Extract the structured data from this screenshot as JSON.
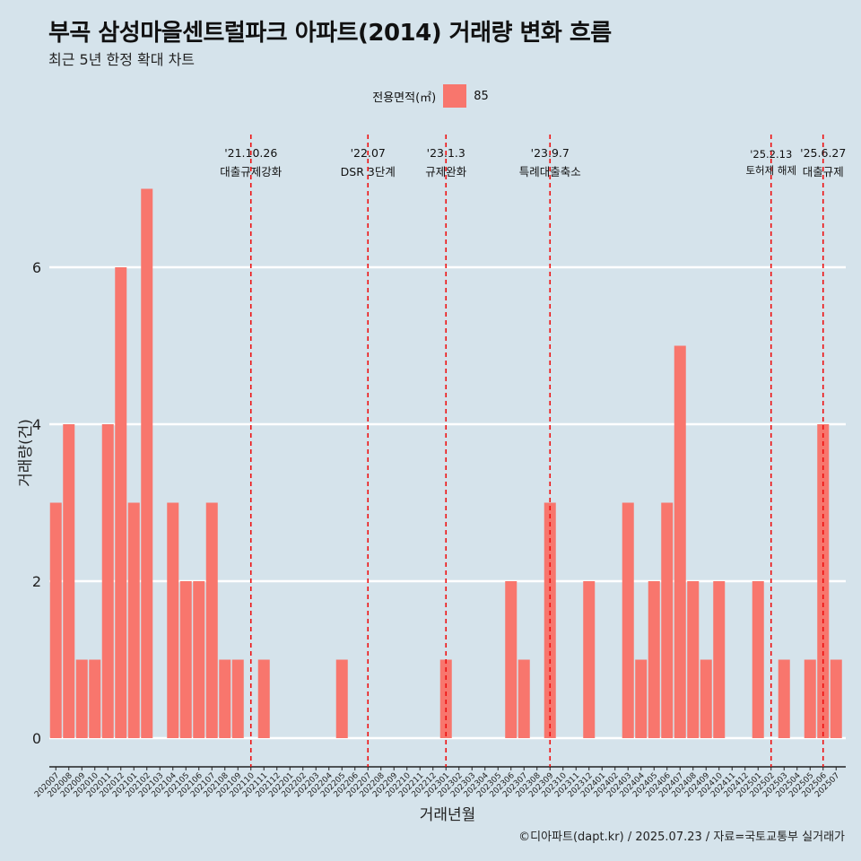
{
  "title": "부곡 삼성마을센트럴파크 아파트(2014) 거래량 변화 흐름",
  "subtitle": "최근 5년 한정 확대 차트",
  "legend": {
    "title": "전용면적(㎡)",
    "label": "85",
    "color": "#f8766d"
  },
  "caption": "©디아파트(dapt.kr) / 2025.07.23 / 자료=국토교통부 실거래가",
  "chart_data": {
    "type": "bar",
    "xlabel": "거래년월",
    "ylabel": "거래량(건)",
    "ylim": [
      0,
      7
    ],
    "yticks": [
      0,
      2,
      4,
      6
    ],
    "categories": [
      "202007",
      "202008",
      "202009",
      "202010",
      "202011",
      "202012",
      "202101",
      "202102",
      "202103",
      "202104",
      "202105",
      "202106",
      "202107",
      "202108",
      "202109",
      "202110",
      "202111",
      "202112",
      "202201",
      "202202",
      "202203",
      "202204",
      "202205",
      "202206",
      "202207",
      "202208",
      "202209",
      "202210",
      "202211",
      "202212",
      "202301",
      "202302",
      "202303",
      "202304",
      "202305",
      "202306",
      "202307",
      "202308",
      "202309",
      "202310",
      "202311",
      "202312",
      "202401",
      "202402",
      "202403",
      "202404",
      "202405",
      "202406",
      "202407",
      "202408",
      "202409",
      "202410",
      "202411",
      "202412",
      "202501",
      "202502",
      "202503",
      "202504",
      "202505",
      "202506",
      "202507"
    ],
    "series": [
      {
        "name": "85",
        "color": "#f8766d",
        "values": [
          3,
          4,
          1,
          1,
          4,
          6,
          3,
          7,
          0,
          3,
          2,
          2,
          3,
          1,
          1,
          0,
          1,
          0,
          0,
          0,
          0,
          0,
          1,
          0,
          0,
          0,
          0,
          0,
          0,
          0,
          1,
          0,
          0,
          0,
          0,
          2,
          1,
          0,
          3,
          0,
          0,
          2,
          0,
          0,
          3,
          1,
          2,
          3,
          5,
          2,
          1,
          2,
          0,
          0,
          2,
          0,
          1,
          0,
          1,
          4,
          1
        ]
      }
    ],
    "annotations": [
      {
        "category": "202110",
        "date": "'21.10.26",
        "label": "대출규제강화"
      },
      {
        "category": "202207",
        "date": "'22.07",
        "label": "DSR 3단계"
      },
      {
        "category": "202301",
        "date": "'23.1.3",
        "label": "규제완화"
      },
      {
        "category": "202309",
        "date": "'23.9.7",
        "label": "특례대출축소"
      },
      {
        "category": "202502",
        "date": "'25.2.13",
        "label": "토허제 해제"
      },
      {
        "category": "202506",
        "date": "'25.6.27",
        "label": "대출규제"
      }
    ],
    "grid": true,
    "legend_position": "top"
  }
}
